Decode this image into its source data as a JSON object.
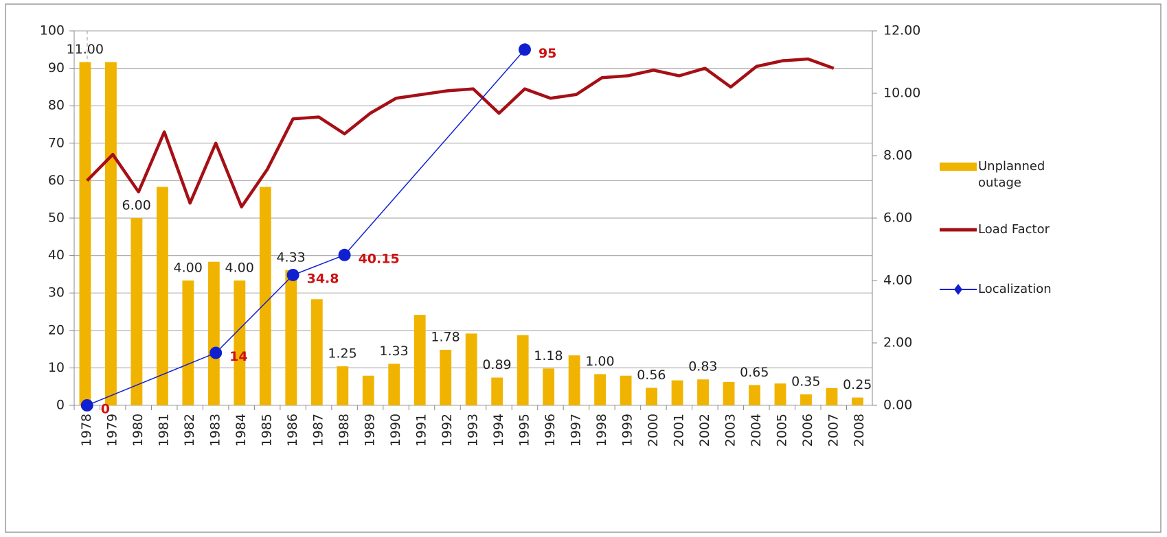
{
  "chart_data": {
    "type": "bar_line",
    "categories": [
      "1978",
      "1979",
      "1980",
      "1981",
      "1982",
      "1983",
      "1984",
      "1985",
      "1986",
      "1987",
      "1988",
      "1989",
      "1990",
      "1991",
      "1992",
      "1993",
      "1994",
      "1995",
      "1996",
      "1997",
      "1998",
      "1999",
      "2000",
      "2001",
      "2002",
      "2003",
      "2004",
      "2005",
      "2006",
      "2007",
      "2008"
    ],
    "series": [
      {
        "name": "Unplanned outage",
        "type": "bar",
        "axis": "y2",
        "color": "#f0b400",
        "values": [
          11,
          11,
          6,
          7,
          4,
          4.6,
          4,
          7,
          4.33,
          3.4,
          1.25,
          0.95,
          1.33,
          2.9,
          1.78,
          2.3,
          0.89,
          2.25,
          1.18,
          1.6,
          1,
          0.95,
          0.56,
          0.8,
          0.83,
          0.75,
          0.65,
          0.7,
          0.35,
          0.55,
          0.25
        ],
        "value_labels": [
          "11.00",
          null,
          "6.00",
          null,
          "4.00",
          null,
          "4.00",
          null,
          "4.33",
          null,
          "1.25",
          null,
          "1.33",
          null,
          "1.78",
          null,
          "0.89",
          null,
          "1.18",
          null,
          "1.00",
          null,
          "0.56",
          null,
          "0.83",
          null,
          "0.65",
          null,
          "0.35",
          null,
          "0.25"
        ]
      },
      {
        "name": "Load Factor",
        "type": "line",
        "color": "#a50f15",
        "values": [
          60,
          67,
          57,
          73,
          54,
          70,
          53,
          63,
          76.5,
          77,
          72.5,
          78,
          82,
          83,
          84,
          84.5,
          78,
          84.5,
          82,
          83,
          87.5,
          88,
          89.5,
          88,
          90,
          85,
          90.5,
          92,
          92.5,
          90,
          null
        ]
      },
      {
        "name": "Localization",
        "type": "line",
        "color": "#1020d0",
        "x": [
          "1978",
          "1983",
          "1986",
          "1988",
          "1995"
        ],
        "values": [
          0,
          14,
          34.8,
          40.15,
          95
        ]
      }
    ],
    "ylim": [
      0,
      100
    ],
    "yticks": [
      0,
      10,
      20,
      30,
      40,
      50,
      60,
      70,
      80,
      90,
      100
    ],
    "y2lim": [
      0,
      12
    ],
    "y2ticks": [
      {
        "value": 0,
        "label": "0.00"
      },
      {
        "value": 2,
        "label": "2.00"
      },
      {
        "value": 4,
        "label": "4.00"
      },
      {
        "value": 6,
        "label": "6.00"
      },
      {
        "value": 8,
        "label": "8.00"
      },
      {
        "value": 10,
        "label": "10.00"
      },
      {
        "value": 12,
        "label": "12.00"
      }
    ],
    "grid": true,
    "legend": "right"
  }
}
